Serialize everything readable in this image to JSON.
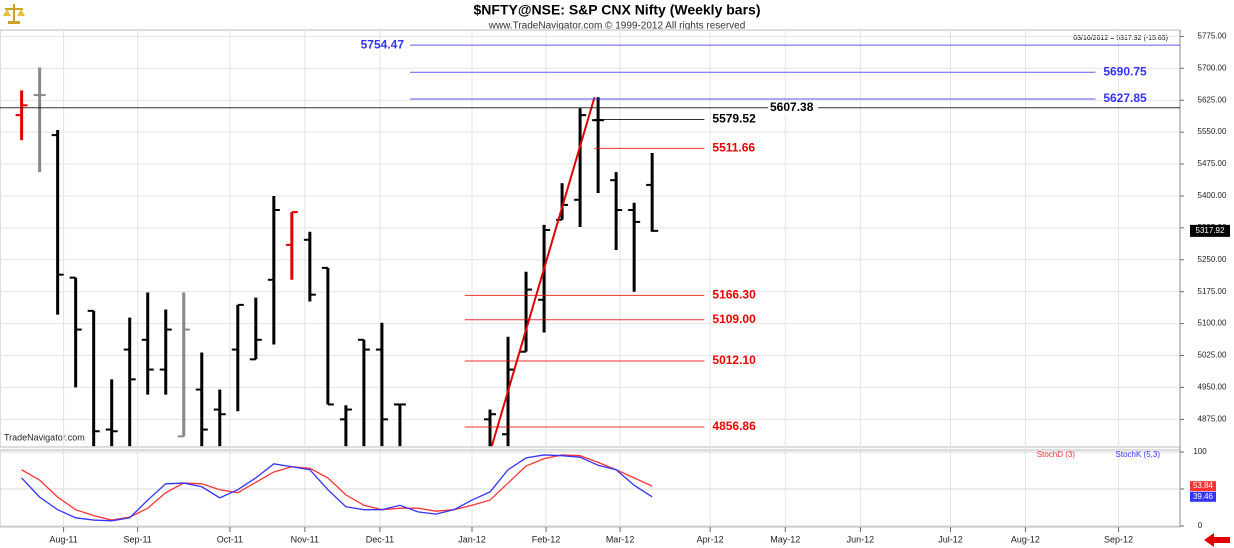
{
  "chart_data": [
    {
      "type": "ohlc",
      "title": "$NFTY@NSE:  S&P CNX Nifty  (Weekly bars)",
      "subtitle": "www.TradeNavigator.com © 1999-2012 All rights reserved",
      "info": "03/16/2012 = 5317.92 (-15.65)",
      "watermark": "TradeNavigator.com",
      "x": [
        0,
        1,
        2,
        3,
        4,
        5,
        6,
        7,
        8,
        9,
        10,
        11,
        12,
        13,
        14,
        15,
        16,
        17,
        18,
        19,
        20,
        21,
        26,
        27,
        28,
        29,
        30,
        31,
        32,
        33,
        34,
        35
      ],
      "open": [
        5590,
        5637,
        5543,
        5208,
        5130,
        4851,
        5039,
        5062,
        4992,
        4835,
        4945,
        4898,
        5039,
        5016,
        5203,
        5285,
        5297,
        5231,
        4875,
        5062,
        5039,
        4910,
        4875,
        4840,
        5034,
        5156,
        5344,
        5391,
        5578,
        5437,
        5367,
        5426
      ],
      "high": [
        5648,
        5702,
        5555,
        5208,
        5130,
        4969,
        5114,
        5173,
        5133,
        5173,
        5032,
        4945,
        5144,
        5161,
        5400,
        5362,
        5316,
        5231,
        4908,
        5062,
        5102,
        4910,
        4898,
        5069,
        5222,
        5332,
        5430,
        5606,
        5632,
        5456,
        5384,
        5501
      ],
      "low": [
        5531,
        5456,
        5121,
        4950,
        4812,
        4812,
        4812,
        4933,
        4933,
        4835,
        4812,
        4812,
        4894,
        5016,
        5051,
        5203,
        5152,
        4910,
        4812,
        4812,
        4812,
        4812,
        4812,
        4812,
        5034,
        5079,
        5344,
        5327,
        5407,
        5273,
        5175,
        5316
      ],
      "close": [
        5613,
        5637,
        5215,
        5086,
        4847,
        4847,
        4969,
        4992,
        5086,
        5086,
        4851,
        4887,
        5144,
        5062,
        5367,
        5362,
        5168,
        4910,
        4898,
        5039,
        4875,
        4910,
        4887,
        4992,
        5180,
        5320,
        5379,
        5590,
        5578,
        5367,
        5339,
        5318
      ],
      "colors": [
        "#e00000",
        "#888888",
        "#000000",
        "#000000",
        "#000000",
        "#000000",
        "#000000",
        "#000000",
        "#000000",
        "#888888",
        "#000000",
        "#000000",
        "#000000",
        "#000000",
        "#000000",
        "#e00000",
        "#000000",
        "#000000",
        "#000000",
        "#000000",
        "#000000",
        "#000000",
        "#000000",
        "#000000",
        "#000000",
        "#000000",
        "#000000",
        "#000000",
        "#000000",
        "#000000",
        "#000000",
        "#000000"
      ],
      "xlim": [
        -1.2,
        64.3
      ],
      "ylim": [
        4810,
        5790
      ],
      "yticks": [
        {
          "value": 4875,
          "label": "4875.00"
        },
        {
          "value": 4950,
          "label": "4950.00"
        },
        {
          "value": 5025,
          "label": "5025.00"
        },
        {
          "value": 5100,
          "label": "5100.00"
        },
        {
          "value": 5175,
          "label": "5175.00"
        },
        {
          "value": 5250,
          "label": "5250.00"
        },
        {
          "value": 5325,
          "label": "5325.00"
        },
        {
          "value": 5400,
          "label": "5400.00"
        },
        {
          "value": 5475,
          "label": "5475.00"
        },
        {
          "value": 5550,
          "label": "5550.00"
        },
        {
          "value": 5625,
          "label": "5625.00"
        },
        {
          "value": 5700,
          "label": "5700.00"
        },
        {
          "value": 5775,
          "label": "5775.00"
        }
      ],
      "grid": true,
      "levels": [
        {
          "value": 5754.47,
          "label": "5754.47",
          "color": "#3333ff",
          "x": [
            21.56,
            64.3
          ]
        },
        {
          "value": 5690.75,
          "label": "5690.75",
          "color": "#3333ff",
          "x": [
            21.56,
            59.6
          ]
        },
        {
          "value": 5627.85,
          "label": "5627.85",
          "color": "#3333ff",
          "x": [
            21.56,
            59.6
          ]
        },
        {
          "value": 5607.38,
          "label": "5607.38",
          "color": "#000000",
          "x": [
            -1.2,
            64.3
          ]
        },
        {
          "value": 5579.52,
          "label": "5579.52",
          "color": "#000000",
          "x": [
            31.8,
            37.9
          ]
        },
        {
          "value": 5511.66,
          "label": "5511.66",
          "color": "#ee0000",
          "x": [
            31.8,
            37.9
          ]
        },
        {
          "value": 5166.3,
          "label": "5166.30",
          "color": "#ee0000",
          "x": [
            24.6,
            37.9
          ]
        },
        {
          "value": 5109.0,
          "label": "5109.00",
          "color": "#ee0000",
          "x": [
            24.6,
            37.9
          ]
        },
        {
          "value": 5012.1,
          "label": "5012.10",
          "color": "#ee0000",
          "x": [
            24.6,
            37.9
          ]
        },
        {
          "value": 4856.86,
          "label": "4856.86",
          "color": "#ee0000",
          "x": [
            24.6,
            37.9
          ]
        }
      ],
      "trendline": {
        "x": [
          26.1,
          31.8
        ],
        "y": [
          4812,
          5632
        ],
        "color": "#e00000"
      },
      "last_price": {
        "value": 5317.92,
        "label": "5317.92"
      }
    },
    {
      "type": "line",
      "x": [
        0,
        1,
        2,
        3,
        4,
        5,
        6,
        7,
        8,
        9,
        10,
        11,
        12,
        13,
        14,
        15,
        16,
        17,
        18,
        19,
        20,
        21,
        22,
        23,
        24,
        25,
        26,
        27,
        28,
        29,
        30,
        31,
        32,
        33,
        34,
        35
      ],
      "series": [
        {
          "name": "StochD (3)",
          "color": "#ff3333",
          "values": [
            76,
            62,
            39,
            22,
            14,
            8,
            12,
            24,
            45,
            58,
            57,
            49,
            45,
            59,
            73,
            80,
            78,
            65,
            42,
            28,
            22,
            24,
            24,
            20,
            22,
            28,
            35,
            58,
            81,
            91,
            96,
            95,
            86,
            76,
            65,
            53.84
          ]
        },
        {
          "name": "StochK (5,3)",
          "color": "#3333ff",
          "values": [
            65,
            39,
            22,
            11,
            8,
            7,
            11,
            35,
            57,
            58,
            53,
            38,
            49,
            65,
            84,
            80,
            76,
            49,
            26,
            22,
            22,
            28,
            19,
            16,
            22,
            35,
            46,
            76,
            92,
            96,
            95,
            93,
            82,
            76,
            55,
            39.46
          ]
        }
      ],
      "xlim": [
        -1.2,
        64.3
      ],
      "ylim": [
        -1.4,
        102.7
      ],
      "yticks": [
        0,
        50,
        100
      ],
      "xticks": [
        {
          "value": 2.33,
          "label": "Aug-11"
        },
        {
          "value": 6.44,
          "label": "Sep-11"
        },
        {
          "value": 11.56,
          "label": "Oct-11"
        },
        {
          "value": 15.72,
          "label": "Nov-11"
        },
        {
          "value": 19.89,
          "label": "Dec-11"
        },
        {
          "value": 25.0,
          "label": "Jan-12"
        },
        {
          "value": 29.11,
          "label": "Feb-12"
        },
        {
          "value": 33.22,
          "label": "Mar-12"
        },
        {
          "value": 38.22,
          "label": "Apr-12"
        },
        {
          "value": 42.39,
          "label": "May-12"
        },
        {
          "value": 46.56,
          "label": "Jun-12"
        },
        {
          "value": 51.56,
          "label": "Jul-12"
        },
        {
          "value": 55.72,
          "label": "Aug-12"
        },
        {
          "value": 60.89,
          "label": "Sep-12"
        }
      ]
    }
  ]
}
